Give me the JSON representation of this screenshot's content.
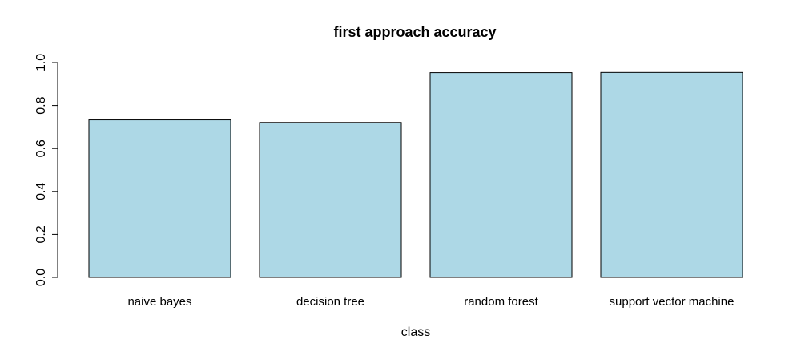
{
  "chart_data": {
    "type": "bar",
    "title": "first approach accuracy",
    "xlabel": "class",
    "ylabel": "",
    "categories": [
      "naive bayes",
      "decision tree",
      "random forest",
      "support vector machine"
    ],
    "values": [
      0.733,
      0.721,
      0.953,
      0.954
    ],
    "ylim": [
      0,
      1
    ],
    "y_ticks": [
      "0.0",
      "0.2",
      "0.4",
      "0.6",
      "0.8",
      "1.0"
    ],
    "grid": false,
    "legend": "none",
    "colors": {
      "bar_fill": "#add8e6",
      "bar_stroke": "#000000",
      "axis": "#000000",
      "background": "#ffffff"
    }
  }
}
